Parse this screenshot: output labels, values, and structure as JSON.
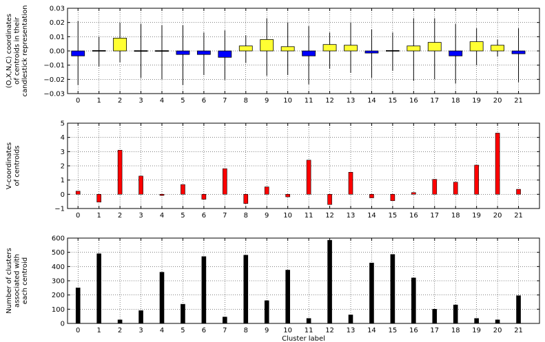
{
  "chart_data": [
    {
      "type": "candlestick",
      "categories": [
        "0",
        "1",
        "2",
        "3",
        "4",
        "5",
        "6",
        "7",
        "8",
        "9",
        "10",
        "11",
        "12",
        "13",
        "14",
        "15",
        "16",
        "17",
        "18",
        "19",
        "20",
        "21"
      ],
      "ylabel": [
        "(O,X,N,C) coordinates",
        "of centroids in their",
        "candlestick representation"
      ],
      "xlabel": "",
      "ylim": [
        -0.03,
        0.03
      ],
      "yticks": [
        "−0.03",
        "−0.02",
        "−0.01",
        "0.00",
        "0.01",
        "0.02",
        "0.03"
      ],
      "grid": true,
      "colors": {
        "up": "#ffff33",
        "down": "#0000ff",
        "neutral": "#000000"
      },
      "open": [
        0.0,
        0.0,
        0.0,
        0.0,
        0.0,
        0.0,
        0.0,
        0.0,
        0.0,
        0.0,
        0.0,
        0.0,
        0.0,
        0.0,
        0.0,
        0.0,
        0.0,
        0.0,
        0.0,
        0.0,
        0.0,
        0.0
      ],
      "close": [
        -0.0035,
        0.0003,
        0.009,
        0.0002,
        0.0002,
        -0.0025,
        -0.0025,
        -0.0045,
        0.0035,
        0.008,
        0.003,
        -0.0035,
        0.0045,
        0.004,
        -0.0015,
        0.0003,
        0.0035,
        0.006,
        -0.0035,
        0.0065,
        0.004,
        -0.002
      ],
      "high": [
        0.021,
        0.01,
        0.02,
        0.019,
        0.018,
        0.018,
        0.013,
        0.0145,
        0.011,
        0.023,
        0.02,
        0.0175,
        0.013,
        0.02,
        0.015,
        0.013,
        0.023,
        0.023,
        0.019,
        0.016,
        0.008,
        0.016
      ],
      "low": [
        -0.024,
        -0.011,
        -0.008,
        -0.019,
        -0.02,
        -0.024,
        -0.017,
        -0.0205,
        -0.0085,
        -0.0175,
        -0.017,
        -0.0235,
        -0.0125,
        -0.0155,
        -0.019,
        -0.014,
        -0.021,
        -0.02,
        -0.023,
        -0.01,
        -0.004,
        -0.022
      ]
    },
    {
      "type": "bar",
      "categories": [
        "0",
        "1",
        "2",
        "3",
        "4",
        "5",
        "6",
        "7",
        "8",
        "9",
        "10",
        "11",
        "12",
        "13",
        "14",
        "15",
        "16",
        "17",
        "18",
        "19",
        "20",
        "21"
      ],
      "values": [
        0.22,
        -0.55,
        3.1,
        1.28,
        -0.08,
        0.68,
        -0.35,
        1.8,
        -0.65,
        0.52,
        -0.18,
        2.4,
        -0.72,
        1.55,
        -0.25,
        -0.45,
        0.12,
        1.05,
        0.85,
        2.05,
        4.3,
        0.35
      ],
      "ylabel": [
        "V-coordinates",
        "of centroids"
      ],
      "xlabel": "",
      "ylim": [
        -1,
        5
      ],
      "yticks": [
        "−1",
        "0",
        "1",
        "2",
        "3",
        "4",
        "5"
      ],
      "grid": true,
      "color": "#ff0000"
    },
    {
      "type": "bar",
      "categories": [
        "0",
        "1",
        "2",
        "3",
        "4",
        "5",
        "6",
        "7",
        "8",
        "9",
        "10",
        "11",
        "12",
        "13",
        "14",
        "15",
        "16",
        "17",
        "18",
        "19",
        "20",
        "21"
      ],
      "values": [
        250,
        490,
        25,
        90,
        360,
        135,
        470,
        45,
        480,
        160,
        375,
        35,
        585,
        60,
        425,
        485,
        320,
        100,
        130,
        35,
        25,
        195
      ],
      "ylabel": [
        "Number of clusters",
        "associated with",
        "each centroid"
      ],
      "xlabel": "Cluster label",
      "ylim": [
        0,
        600
      ],
      "yticks": [
        "0",
        "100",
        "200",
        "300",
        "400",
        "500",
        "600"
      ],
      "grid": true,
      "color": "#000000"
    }
  ]
}
